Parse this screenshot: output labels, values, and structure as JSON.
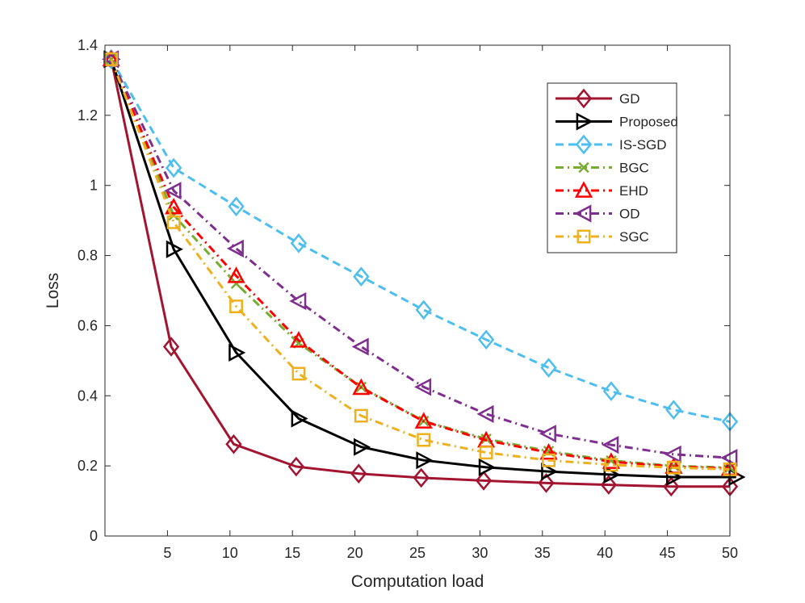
{
  "chart_data": {
    "type": "line",
    "title": "",
    "xlabel": "Computation load",
    "ylabel": "Loss",
    "xlim": [
      0,
      50
    ],
    "ylim": [
      0,
      1.4
    ],
    "xticks": [
      5,
      10,
      15,
      20,
      25,
      30,
      35,
      40,
      45,
      50
    ],
    "xtick_labels": [
      "5",
      "10",
      "15",
      "20",
      "25",
      "30",
      "35",
      "40",
      "45",
      "50"
    ],
    "yticks": [
      0,
      0.2,
      0.4,
      0.6,
      0.8,
      1,
      1.2,
      1.4
    ],
    "ytick_labels": [
      "0",
      "0.2",
      "0.4",
      "0.6",
      "0.8",
      "1",
      "1.2",
      "1.4"
    ],
    "legend_position": "top-right",
    "series": [
      {
        "name": "GD",
        "color": "#A2142F",
        "dash": "solid",
        "marker": "diamond",
        "x": [
          0.5,
          5.3,
          10.3,
          15.3,
          20.3,
          25.3,
          30.3,
          35.3,
          40.3,
          45.3,
          50
        ],
        "y": [
          1.36,
          0.54,
          0.262,
          0.198,
          0.178,
          0.166,
          0.158,
          0.151,
          0.146,
          0.141,
          0.141
        ]
      },
      {
        "name": "Proposed",
        "color": "#000000",
        "dash": "solid",
        "marker": "triangle-right",
        "x": [
          0.5,
          5.5,
          10.5,
          15.5,
          20.5,
          25.5,
          30.5,
          35.5,
          40.5,
          45.5,
          50.5
        ],
        "y": [
          1.36,
          0.818,
          0.523,
          0.335,
          0.254,
          0.216,
          0.196,
          0.184,
          0.175,
          0.168,
          0.168
        ]
      },
      {
        "name": "IS-SGD",
        "color": "#4DBEEE",
        "dash": "dash",
        "marker": "diamond",
        "x": [
          0.5,
          5.5,
          10.5,
          15.5,
          20.5,
          25.5,
          30.5,
          35.5,
          40.5,
          45.5,
          50
        ],
        "y": [
          1.36,
          1.05,
          0.94,
          0.835,
          0.74,
          0.645,
          0.56,
          0.48,
          0.413,
          0.36,
          0.326
        ]
      },
      {
        "name": "BGC",
        "color": "#77AC30",
        "dash": "dashdot",
        "marker": "x",
        "x": [
          0.5,
          5.5,
          10.5,
          15.5,
          20.5,
          25.5,
          30.5,
          35.5,
          40.5,
          45.5,
          50
        ],
        "y": [
          1.36,
          0.915,
          0.72,
          0.55,
          0.425,
          0.328,
          0.277,
          0.242,
          0.215,
          0.2,
          0.195
        ]
      },
      {
        "name": "EHD",
        "color": "#FF0000",
        "dash": "dashdot",
        "marker": "triangle-up",
        "x": [
          0.5,
          5.5,
          10.5,
          15.5,
          20.5,
          25.5,
          30.5,
          35.5,
          40.5,
          45.5,
          50
        ],
        "y": [
          1.36,
          0.938,
          0.742,
          0.558,
          0.423,
          0.327,
          0.273,
          0.238,
          0.212,
          0.198,
          0.193
        ]
      },
      {
        "name": "OD",
        "color": "#7E2F8E",
        "dash": "dashdot",
        "marker": "triangle-left",
        "x": [
          0.5,
          5.5,
          10.5,
          15.5,
          20.5,
          25.5,
          30.5,
          35.5,
          40.5,
          45.5,
          50
        ],
        "y": [
          1.36,
          0.985,
          0.82,
          0.67,
          0.54,
          0.425,
          0.348,
          0.292,
          0.26,
          0.233,
          0.223
        ]
      },
      {
        "name": "SGC",
        "color": "#EDB120",
        "dash": "dashdot",
        "marker": "square",
        "x": [
          0.5,
          5.5,
          10.5,
          15.5,
          20.5,
          25.5,
          30.5,
          35.5,
          40.5,
          45.5,
          50
        ],
        "y": [
          1.36,
          0.895,
          0.655,
          0.463,
          0.343,
          0.274,
          0.238,
          0.216,
          0.203,
          0.195,
          0.19
        ]
      }
    ]
  }
}
